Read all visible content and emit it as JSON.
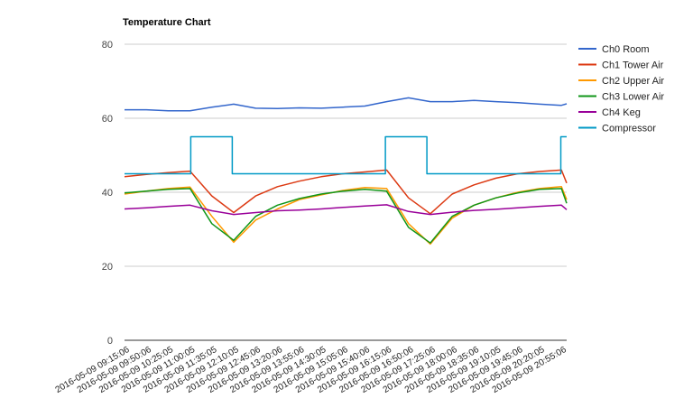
{
  "chart_data": {
    "type": "line",
    "title": "Temperature Chart",
    "xlabel": "",
    "ylabel": "",
    "ylim": [
      0,
      80
    ],
    "yticks": [
      0,
      20,
      40,
      60,
      80
    ],
    "grid": true,
    "legend_position": "right",
    "x_tick_labels": [
      "2016-05-09 09:15:06",
      "2016-05-09 09:50:06",
      "2016-05-09 10:25:05",
      "2016-05-09 11:00:05",
      "2016-05-09 11:35:05",
      "2016-05-09 12:10:05",
      "2016-05-09 12:45:06",
      "2016-05-09 13:20:06",
      "2016-05-09 13:55:06",
      "2016-05-09 14:30:05",
      "2016-05-09 15:05:06",
      "2016-05-09 15:40:06",
      "2016-05-09 16:15:06",
      "2016-05-09 16:50:06",
      "2016-05-09 17:25:06",
      "2016-05-09 18:00:06",
      "2016-05-09 18:35:06",
      "2016-05-09 19:10:05",
      "2016-05-09 19:45:06",
      "2016-05-09 20:20:05",
      "2016-05-09 20:55:06"
    ],
    "x": [
      0,
      1,
      2,
      3,
      4,
      5,
      6,
      7,
      8,
      9,
      10,
      11,
      12,
      13,
      14,
      15,
      16,
      17,
      18,
      19,
      20,
      20.24
    ],
    "series": [
      {
        "name": "Ch0 Room",
        "color": "#3366cc",
        "values": [
          62.3,
          62.3,
          62.0,
          62.0,
          63.0,
          63.8,
          62.7,
          62.6,
          62.8,
          62.7,
          63.0,
          63.3,
          64.5,
          65.5,
          64.5,
          64.5,
          64.8,
          64.5,
          64.2,
          63.8,
          63.5,
          63.9
        ]
      },
      {
        "name": "Ch1 Tower Air",
        "color": "#dc3912",
        "values": [
          44.2,
          44.8,
          45.3,
          45.7,
          39.0,
          34.5,
          39.0,
          41.5,
          43.0,
          44.2,
          45.0,
          45.5,
          46.0,
          38.5,
          34.2,
          39.5,
          42.0,
          43.8,
          45.0,
          45.6,
          46.0,
          42.5
        ]
      },
      {
        "name": "Ch2 Upper Air",
        "color": "#ff9900",
        "values": [
          39.5,
          40.3,
          41.0,
          41.4,
          33.5,
          26.5,
          32.5,
          35.5,
          38.0,
          39.3,
          40.5,
          41.3,
          41.0,
          31.5,
          26.0,
          33.0,
          36.5,
          38.5,
          40.0,
          41.0,
          41.5,
          38.0
        ]
      },
      {
        "name": "Ch3 Lower Air",
        "color": "#109618",
        "values": [
          39.8,
          40.3,
          40.8,
          41.0,
          31.5,
          27.0,
          33.5,
          36.5,
          38.3,
          39.5,
          40.3,
          40.8,
          40.3,
          30.5,
          26.3,
          33.5,
          36.5,
          38.5,
          39.8,
          40.8,
          41.0,
          37.0
        ]
      },
      {
        "name": "Ch4 Keg",
        "color": "#990099",
        "values": [
          35.5,
          35.8,
          36.2,
          36.5,
          35.0,
          34.0,
          34.5,
          35.0,
          35.2,
          35.5,
          35.9,
          36.3,
          36.6,
          34.8,
          34.0,
          34.6,
          35.1,
          35.4,
          35.8,
          36.2,
          36.5,
          35.3
        ]
      },
      {
        "name": "Compressor",
        "color": "#0099c6",
        "step_points": [
          [
            0,
            45
          ],
          [
            3.03,
            45
          ],
          [
            3.03,
            55
          ],
          [
            4.93,
            55
          ],
          [
            4.93,
            45
          ],
          [
            11.94,
            45
          ],
          [
            11.94,
            55
          ],
          [
            13.84,
            55
          ],
          [
            13.84,
            45
          ],
          [
            19.97,
            45
          ],
          [
            19.97,
            55
          ],
          [
            20.24,
            55
          ]
        ]
      }
    ]
  }
}
